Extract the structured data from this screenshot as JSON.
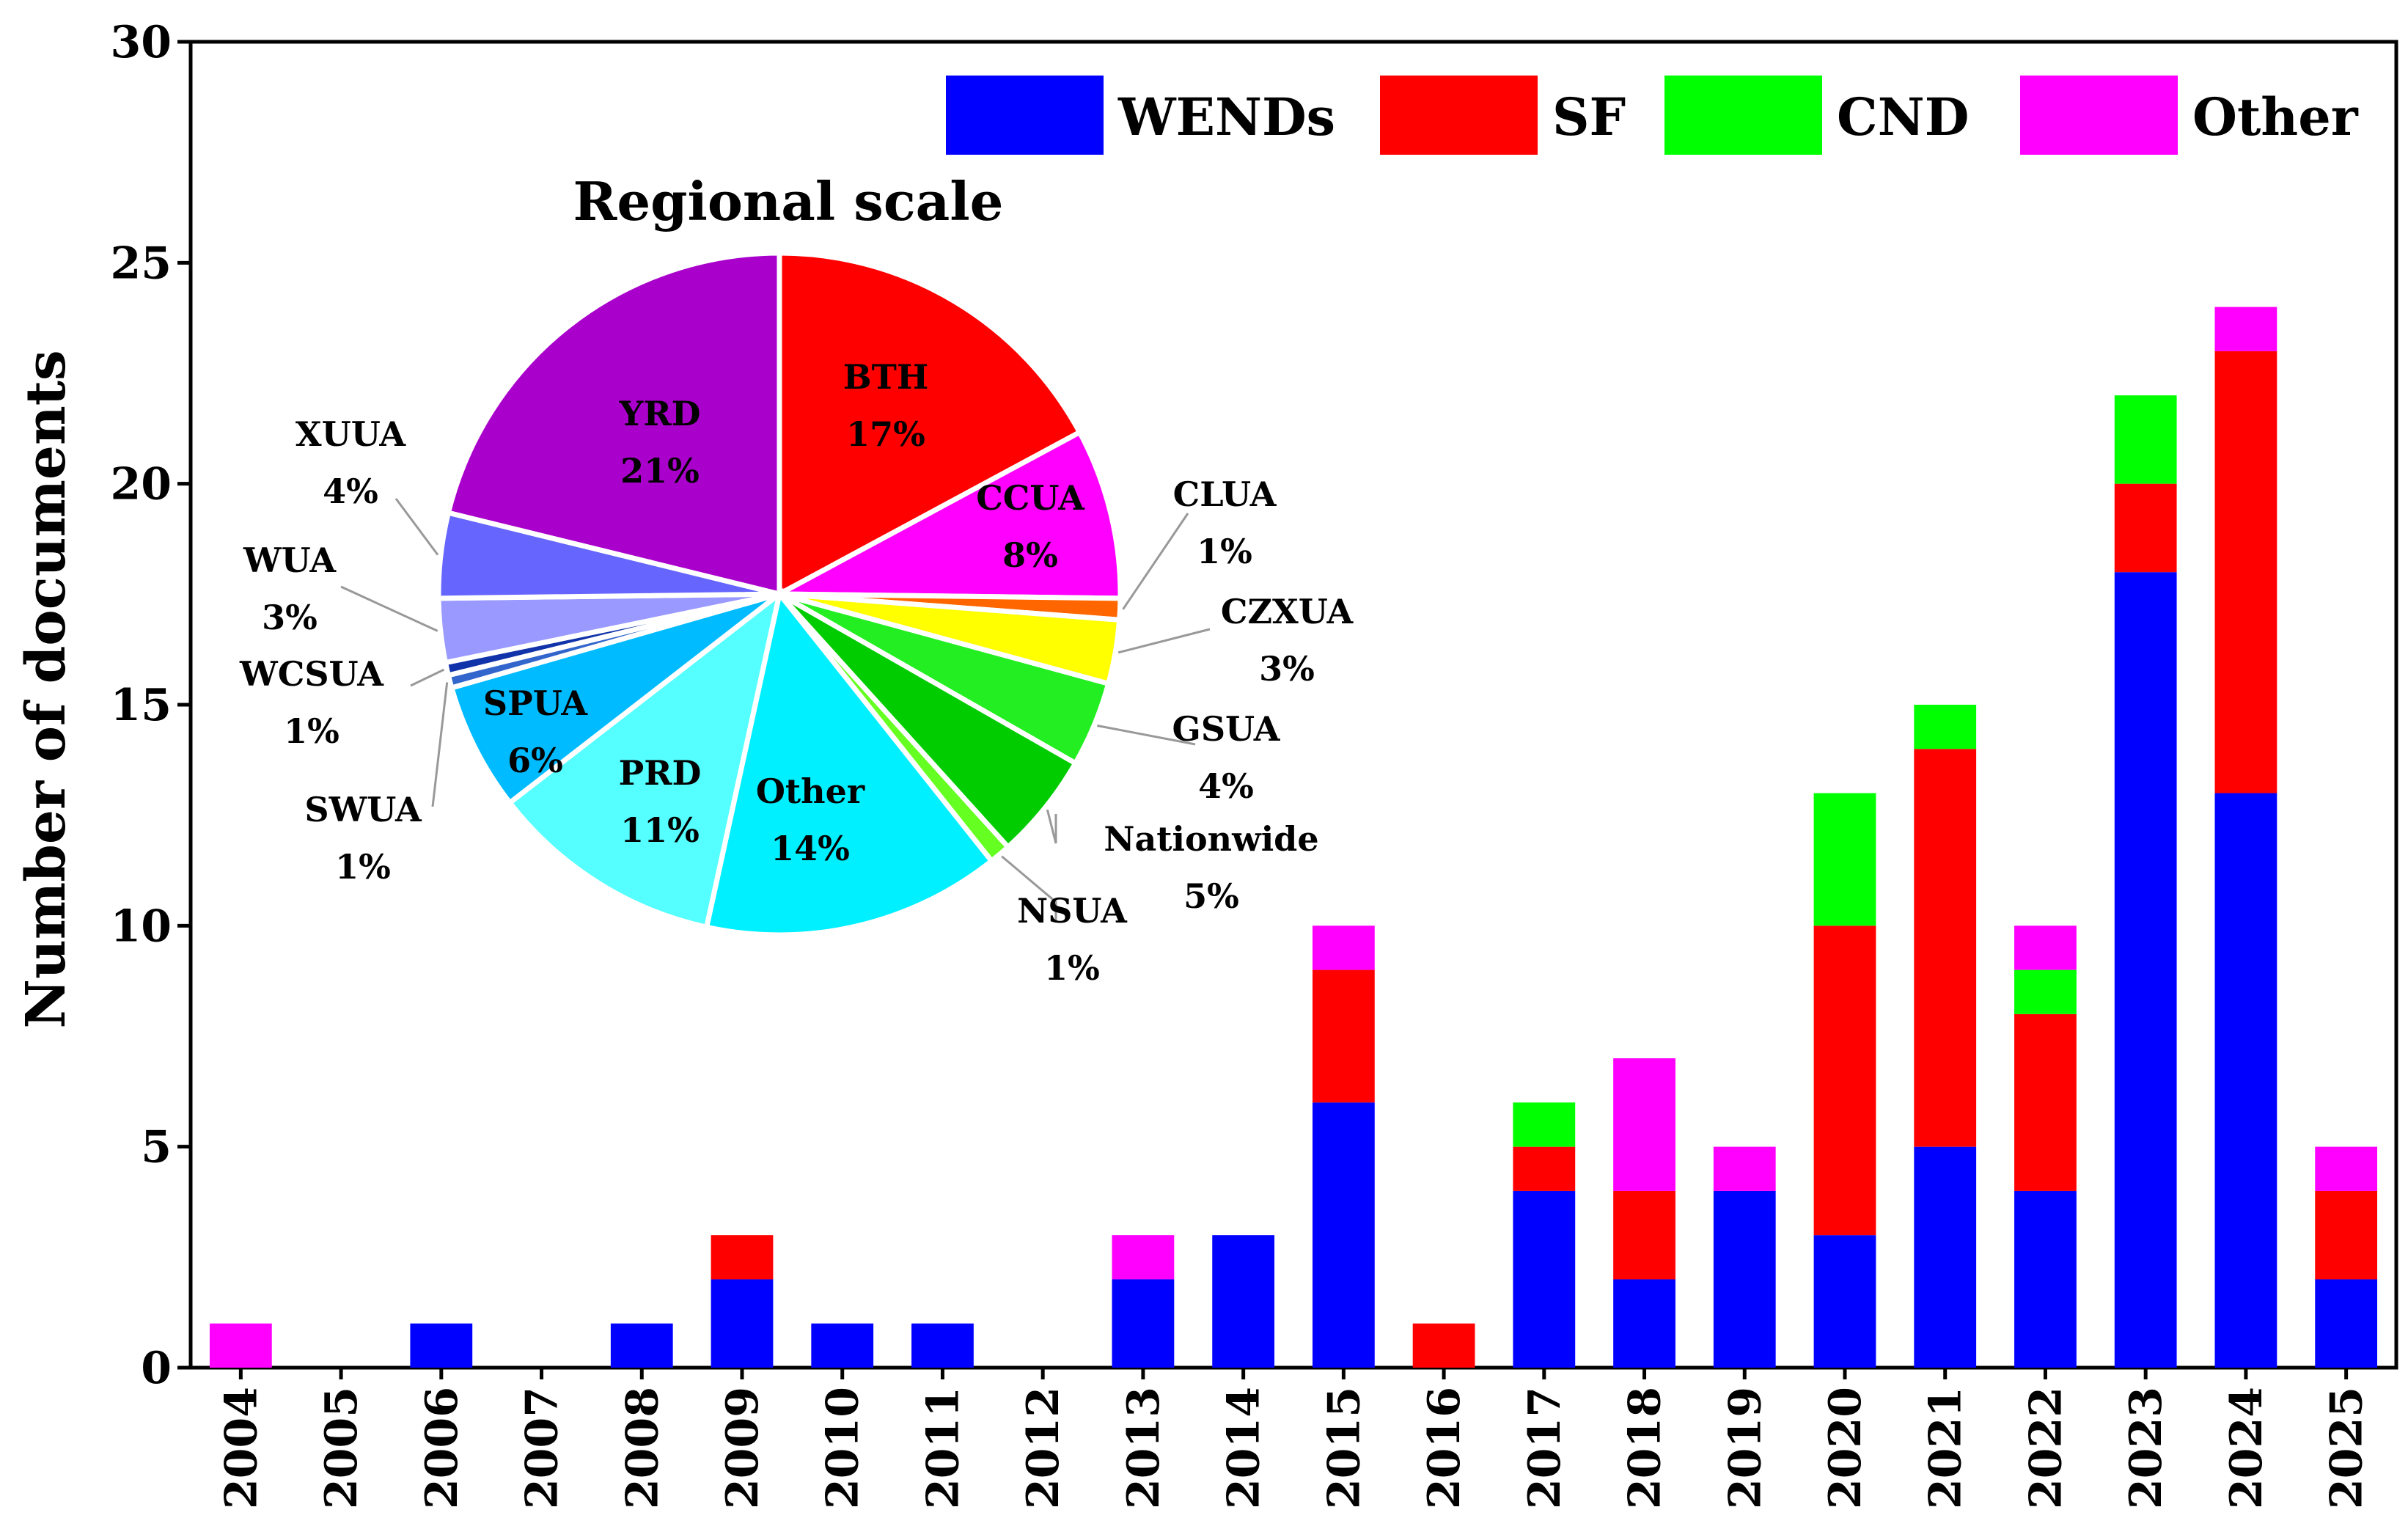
{
  "chart_data": {
    "type": "bar",
    "stacked": true,
    "ylabel": "Number of documents",
    "xlabel": "",
    "ylim": [
      0,
      30
    ],
    "yticks": [
      0,
      5,
      10,
      15,
      20,
      25,
      30
    ],
    "categories": [
      "2004",
      "2005",
      "2006",
      "2007",
      "2008",
      "2009",
      "2010",
      "2011",
      "2012",
      "2013",
      "2014",
      "2015",
      "2016",
      "2017",
      "2018",
      "2019",
      "2020",
      "2021",
      "2022",
      "2023",
      "2024",
      "2025"
    ],
    "series": [
      {
        "name": "WENDs",
        "color": "#0000ff",
        "values": [
          0,
          0,
          1,
          0,
          1,
          2,
          1,
          1,
          0,
          2,
          3,
          6,
          0,
          4,
          2,
          4,
          3,
          5,
          4,
          18,
          13,
          2
        ]
      },
      {
        "name": "SF",
        "color": "#ff0000",
        "values": [
          0,
          0,
          0,
          0,
          0,
          1,
          0,
          0,
          0,
          0,
          0,
          3,
          1,
          1,
          2,
          0,
          7,
          9,
          4,
          2,
          10,
          2
        ]
      },
      {
        "name": "CND",
        "color": "#00ff00",
        "values": [
          0,
          0,
          0,
          0,
          0,
          0,
          0,
          0,
          0,
          0,
          0,
          0,
          0,
          1,
          0,
          0,
          3,
          1,
          1,
          2,
          0,
          0
        ]
      },
      {
        "name": "Other",
        "color": "#ff00ff",
        "values": [
          1,
          0,
          0,
          0,
          0,
          0,
          0,
          0,
          0,
          1,
          0,
          1,
          0,
          0,
          3,
          1,
          0,
          0,
          1,
          0,
          1,
          1
        ]
      }
    ],
    "legend_position": "top-right",
    "inset_pie": {
      "title": "Regional scale",
      "slices": [
        {
          "name": "BTH",
          "pct_label": "17%",
          "value": 17,
          "color": "#ff0000",
          "label_inside": true
        },
        {
          "name": "CCUA",
          "pct_label": "8%",
          "value": 8,
          "color": "#ff00ff",
          "label_inside": true
        },
        {
          "name": "CLUA",
          "pct_label": "1%",
          "value": 1,
          "color": "#ff6600",
          "label_inside": false
        },
        {
          "name": "CZXUA",
          "pct_label": "3%",
          "value": 3,
          "color": "#ffff00",
          "label_inside": false
        },
        {
          "name": "GSUA",
          "pct_label": "4%",
          "value": 4,
          "color": "#22ee22",
          "label_inside": false
        },
        {
          "name": "Nationwide",
          "pct_label": "5%",
          "value": 5,
          "color": "#00cc00",
          "label_inside": false
        },
        {
          "name": "NSUA",
          "pct_label": "1%",
          "value": 1,
          "color": "#66ff22",
          "label_inside": false
        },
        {
          "name": "Other",
          "pct_label": "14%",
          "value": 14,
          "color": "#00f0ff",
          "label_inside": true
        },
        {
          "name": "PRD",
          "pct_label": "11%",
          "value": 11,
          "color": "#55ffff",
          "label_inside": true
        },
        {
          "name": "SPUA",
          "pct_label": "6%",
          "value": 6,
          "color": "#00bbff",
          "label_inside": true
        },
        {
          "name": "SWUA",
          "pct_label": "1%",
          "value": 0.6,
          "color": "#3366cc",
          "label_inside": false
        },
        {
          "name": "WCSUA",
          "pct_label": "1%",
          "value": 0.6,
          "color": "#1133aa",
          "label_inside": false
        },
        {
          "name": "WUA",
          "pct_label": "3%",
          "value": 3,
          "color": "#9999ff",
          "label_inside": false
        },
        {
          "name": "XUUA",
          "pct_label": "4%",
          "value": 4,
          "color": "#6666ff",
          "label_inside": false
        },
        {
          "name": "YRD",
          "pct_label": "21%",
          "value": 21,
          "color": "#aa00cc",
          "label_inside": true
        }
      ]
    }
  }
}
